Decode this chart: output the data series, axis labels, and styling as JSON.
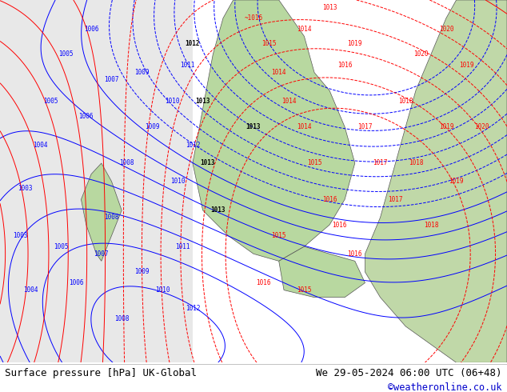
{
  "title_left": "Surface pressure [hPa] UK-Global",
  "title_right": "We 29-05-2024 06:00 UTC (06+48)",
  "copyright": "©weatheronline.co.uk",
  "bg_color": "#ffffff",
  "footer_bg": "#ffffff",
  "image_bg": "#d0e8d0",
  "footer_text_color": "#000000",
  "copyright_color": "#0000cc",
  "footer_fontsize": 9,
  "fig_width": 6.34,
  "fig_height": 4.9,
  "dpi": 100
}
